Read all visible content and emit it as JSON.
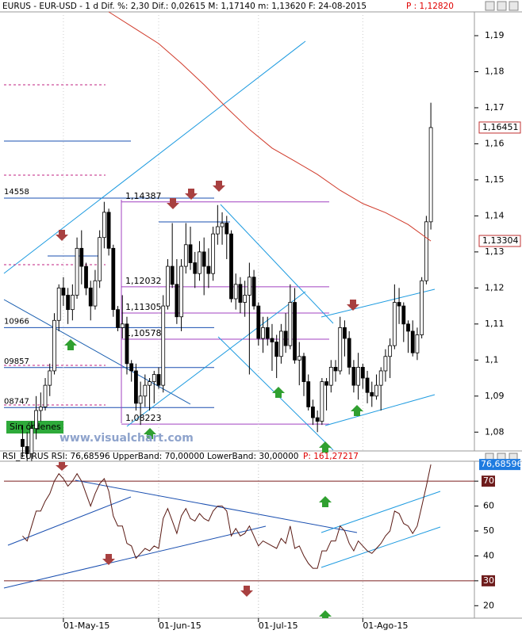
{
  "header": {
    "title": "EURUS - EUR-USD - 1 d Dif. %: 2,30 Dif.: 0,02615 M: 1,17140 m: 1,13620 F: 24-08-2015",
    "price": "P : 1,12820"
  },
  "watermark": "www.visualchart.com",
  "status": "Sin órdenes",
  "chart_data": [
    {
      "type": "candlestick",
      "xlim": [
        -4.1,
        99.6
      ],
      "ylim": [
        1.075,
        1.1966
      ],
      "yticks": [
        {
          "value": 1.08,
          "label": "1,08"
        },
        {
          "value": 1.09,
          "label": "1,09"
        },
        {
          "value": 1.1,
          "label": "1,1"
        },
        {
          "value": 1.11,
          "label": "1,11"
        },
        {
          "value": 1.12,
          "label": "1,12"
        },
        {
          "value": 1.13,
          "label": "1,13"
        },
        {
          "value": 1.14,
          "label": "1,14"
        },
        {
          "value": 1.15,
          "label": "1,15"
        },
        {
          "value": 1.16,
          "label": "1,16"
        },
        {
          "value": 1.17,
          "label": "1,17"
        },
        {
          "value": 1.18,
          "label": "1,18"
        },
        {
          "value": 1.19,
          "label": "1,19"
        }
      ],
      "up_color": "#ffffff",
      "down_color": "#000000",
      "ohlc": [
        [
          1.078,
          1.082,
          1.073,
          1.076
        ],
        [
          1.076,
          1.08,
          1.072,
          1.074
        ],
        [
          1.074,
          1.083,
          1.072,
          1.081
        ],
        [
          1.081,
          1.09,
          1.078,
          1.086
        ],
        [
          1.086,
          1.091,
          1.083,
          1.087
        ],
        [
          1.087,
          1.095,
          1.086,
          1.093
        ],
        [
          1.093,
          1.099,
          1.09,
          1.097
        ],
        [
          1.097,
          1.113,
          1.096,
          1.111
        ],
        [
          1.111,
          1.121,
          1.108,
          1.12
        ],
        [
          1.12,
          1.123,
          1.115,
          1.118
        ],
        [
          1.118,
          1.12,
          1.11,
          1.114
        ],
        [
          1.114,
          1.121,
          1.111,
          1.118
        ],
        [
          1.118,
          1.134,
          1.117,
          1.131
        ],
        [
          1.131,
          1.136,
          1.121,
          1.126
        ],
        [
          1.126,
          1.127,
          1.118,
          1.12
        ],
        [
          1.12,
          1.122,
          1.111,
          1.115
        ],
        [
          1.115,
          1.125,
          1.114,
          1.122
        ],
        [
          1.122,
          1.136,
          1.12,
          1.134
        ],
        [
          1.134,
          1.1439,
          1.131,
          1.141
        ],
        [
          1.141,
          1.142,
          1.129,
          1.131
        ],
        [
          1.131,
          1.132,
          1.112,
          1.114
        ],
        [
          1.114,
          1.115,
          1.108,
          1.109
        ],
        [
          1.109,
          1.118,
          1.106,
          1.11
        ],
        [
          1.11,
          1.112,
          1.096,
          1.099
        ],
        [
          1.099,
          1.1,
          1.094,
          1.097
        ],
        [
          1.097,
          1.099,
          1.086,
          1.088
        ],
        [
          1.088,
          1.094,
          1.082,
          1.09
        ],
        [
          1.09,
          1.096,
          1.087,
          1.093
        ],
        [
          1.093,
          1.095,
          1.086,
          1.094
        ],
        [
          1.094,
          1.097,
          1.088,
          1.096
        ],
        [
          1.096,
          1.098,
          1.092,
          1.093
        ],
        [
          1.093,
          1.118,
          1.091,
          1.115
        ],
        [
          1.115,
          1.128,
          1.114,
          1.126
        ],
        [
          1.126,
          1.138,
          1.12,
          1.121
        ],
        [
          1.121,
          1.128,
          1.11,
          1.112
        ],
        [
          1.112,
          1.128,
          1.108,
          1.126
        ],
        [
          1.126,
          1.138,
          1.124,
          1.132
        ],
        [
          1.132,
          1.137,
          1.125,
          1.127
        ],
        [
          1.127,
          1.13,
          1.12,
          1.124
        ],
        [
          1.124,
          1.133,
          1.122,
          1.13
        ],
        [
          1.13,
          1.134,
          1.118,
          1.126
        ],
        [
          1.126,
          1.131,
          1.12,
          1.124
        ],
        [
          1.124,
          1.137,
          1.122,
          1.135
        ],
        [
          1.135,
          1.143,
          1.132,
          1.137
        ],
        [
          1.137,
          1.141,
          1.132,
          1.138
        ],
        [
          1.138,
          1.14,
          1.128,
          1.135
        ],
        [
          1.135,
          1.136,
          1.116,
          1.117
        ],
        [
          1.117,
          1.124,
          1.114,
          1.121
        ],
        [
          1.121,
          1.123,
          1.113,
          1.116
        ],
        [
          1.116,
          1.122,
          1.112,
          1.118
        ],
        [
          1.118,
          1.127,
          1.096,
          1.123
        ],
        [
          1.123,
          1.125,
          1.114,
          1.115
        ],
        [
          1.115,
          1.116,
          1.104,
          1.106
        ],
        [
          1.106,
          1.112,
          1.102,
          1.109
        ],
        [
          1.109,
          1.112,
          1.104,
          1.106
        ],
        [
          1.106,
          1.11,
          1.097,
          1.105
        ],
        [
          1.105,
          1.107,
          1.095,
          1.101
        ],
        [
          1.101,
          1.11,
          1.099,
          1.108
        ],
        [
          1.108,
          1.113,
          1.102,
          1.104
        ],
        [
          1.104,
          1.121,
          1.103,
          1.116
        ],
        [
          1.116,
          1.12,
          1.099,
          1.1
        ],
        [
          1.1,
          1.105,
          1.093,
          1.101
        ],
        [
          1.101,
          1.102,
          1.09,
          1.094
        ],
        [
          1.094,
          1.096,
          1.086,
          1.087
        ],
        [
          1.087,
          1.089,
          1.082,
          1.084
        ],
        [
          1.084,
          1.086,
          1.08,
          1.083
        ],
        [
          1.083,
          1.095,
          1.082,
          1.094
        ],
        [
          1.094,
          1.095,
          1.086,
          1.093
        ],
        [
          1.093,
          1.1,
          1.091,
          1.098
        ],
        [
          1.098,
          1.1,
          1.094,
          1.097
        ],
        [
          1.097,
          1.112,
          1.096,
          1.109
        ],
        [
          1.109,
          1.111,
          1.101,
          1.106
        ],
        [
          1.106,
          1.108,
          1.096,
          1.098
        ],
        [
          1.098,
          1.1,
          1.091,
          1.093
        ],
        [
          1.093,
          1.102,
          1.089,
          1.098
        ],
        [
          1.098,
          1.099,
          1.092,
          1.095
        ],
        [
          1.095,
          1.097,
          1.088,
          1.091
        ],
        [
          1.091,
          1.094,
          1.087,
          1.09
        ],
        [
          1.09,
          1.096,
          1.089,
          1.093
        ],
        [
          1.093,
          1.098,
          1.086,
          1.097
        ],
        [
          1.097,
          1.103,
          1.094,
          1.101
        ],
        [
          1.101,
          1.106,
          1.095,
          1.104
        ],
        [
          1.104,
          1.121,
          1.103,
          1.116
        ],
        [
          1.116,
          1.12,
          1.11,
          1.115
        ],
        [
          1.115,
          1.116,
          1.105,
          1.11
        ],
        [
          1.11,
          1.111,
          1.102,
          1.108
        ],
        [
          1.108,
          1.111,
          1.101,
          1.102
        ],
        [
          1.102,
          1.109,
          1.1,
          1.107
        ],
        [
          1.107,
          1.123,
          1.106,
          1.122
        ],
        [
          1.122,
          1.14,
          1.121,
          1.13836
        ],
        [
          1.13836,
          1.1714,
          1.1362,
          1.16451
        ]
      ],
      "ma_color": "#d03a2a",
      "ma_x": [
        19,
        25,
        30,
        35,
        40,
        45,
        50,
        55,
        60,
        65,
        70,
        75,
        80,
        85,
        90
      ],
      "ma_values": [
        1.1966,
        1.1918,
        1.1878,
        1.1823,
        1.1764,
        1.17,
        1.164,
        1.1588,
        1.1552,
        1.1515,
        1.1471,
        1.1434,
        1.1409,
        1.1376,
        1.13304
      ],
      "last_labels": [
        {
          "value": 1.16451,
          "label": "1,16451"
        },
        {
          "value": 1.13304,
          "label": "1,13304"
        }
      ],
      "levels": [
        {
          "value": 1.14387,
          "label": "1,14387"
        },
        {
          "value": 1.12032,
          "label": "1,12032"
        },
        {
          "value": 1.11305,
          "label": "1,11305"
        },
        {
          "value": 1.10578,
          "label": "1,10578"
        },
        {
          "value": 1.08223,
          "label": "1,08223"
        }
      ],
      "left_levels": [
        {
          "value": 1.14558,
          "label": "14558"
        },
        {
          "value": 1.10966,
          "label": "10966"
        },
        {
          "value": 1.09857,
          "label": "09857"
        },
        {
          "value": 1.08747,
          "label": "08747"
        }
      ]
    },
    {
      "type": "line",
      "title": "RSI_EURUS RSI: 76,68596 UpperBand: 70,00000 LowerBand: 30,00000",
      "price": "P: 161,27217",
      "color": "#5a1a14",
      "xlim": [
        -4.1,
        99.6
      ],
      "ylim": [
        15,
        78
      ],
      "yticks": [
        20,
        30,
        40,
        50,
        60,
        70
      ],
      "bands": [
        70,
        30
      ],
      "xticks": [
        {
          "value": 9,
          "label": "01-May-15"
        },
        {
          "value": 30,
          "label": "01-Jun-15"
        },
        {
          "value": 52,
          "label": "01-Jul-15"
        },
        {
          "value": 75,
          "label": "01-Ago-15"
        }
      ],
      "last_label": {
        "value": 76.68596,
        "label": "76,68596"
      },
      "values": [
        48,
        46,
        52,
        58,
        58,
        62,
        65,
        70,
        73,
        71,
        68,
        70,
        73,
        70,
        65,
        60,
        65,
        69,
        71,
        66,
        56,
        52,
        52,
        45,
        44,
        39,
        41,
        43,
        42,
        44,
        43,
        55,
        59,
        54,
        49,
        56,
        59,
        55,
        54,
        57,
        55,
        54,
        58,
        60,
        60,
        58,
        48,
        51,
        48,
        49,
        52,
        48,
        44,
        46,
        45,
        44,
        43,
        47,
        45,
        52,
        43,
        44,
        40,
        37,
        35,
        35,
        42,
        42,
        46,
        46,
        52,
        50,
        45,
        42,
        46,
        44,
        42,
        41,
        43,
        45,
        48,
        50,
        58,
        57,
        53,
        52,
        49,
        52,
        60,
        68,
        76.68596
      ]
    }
  ]
}
